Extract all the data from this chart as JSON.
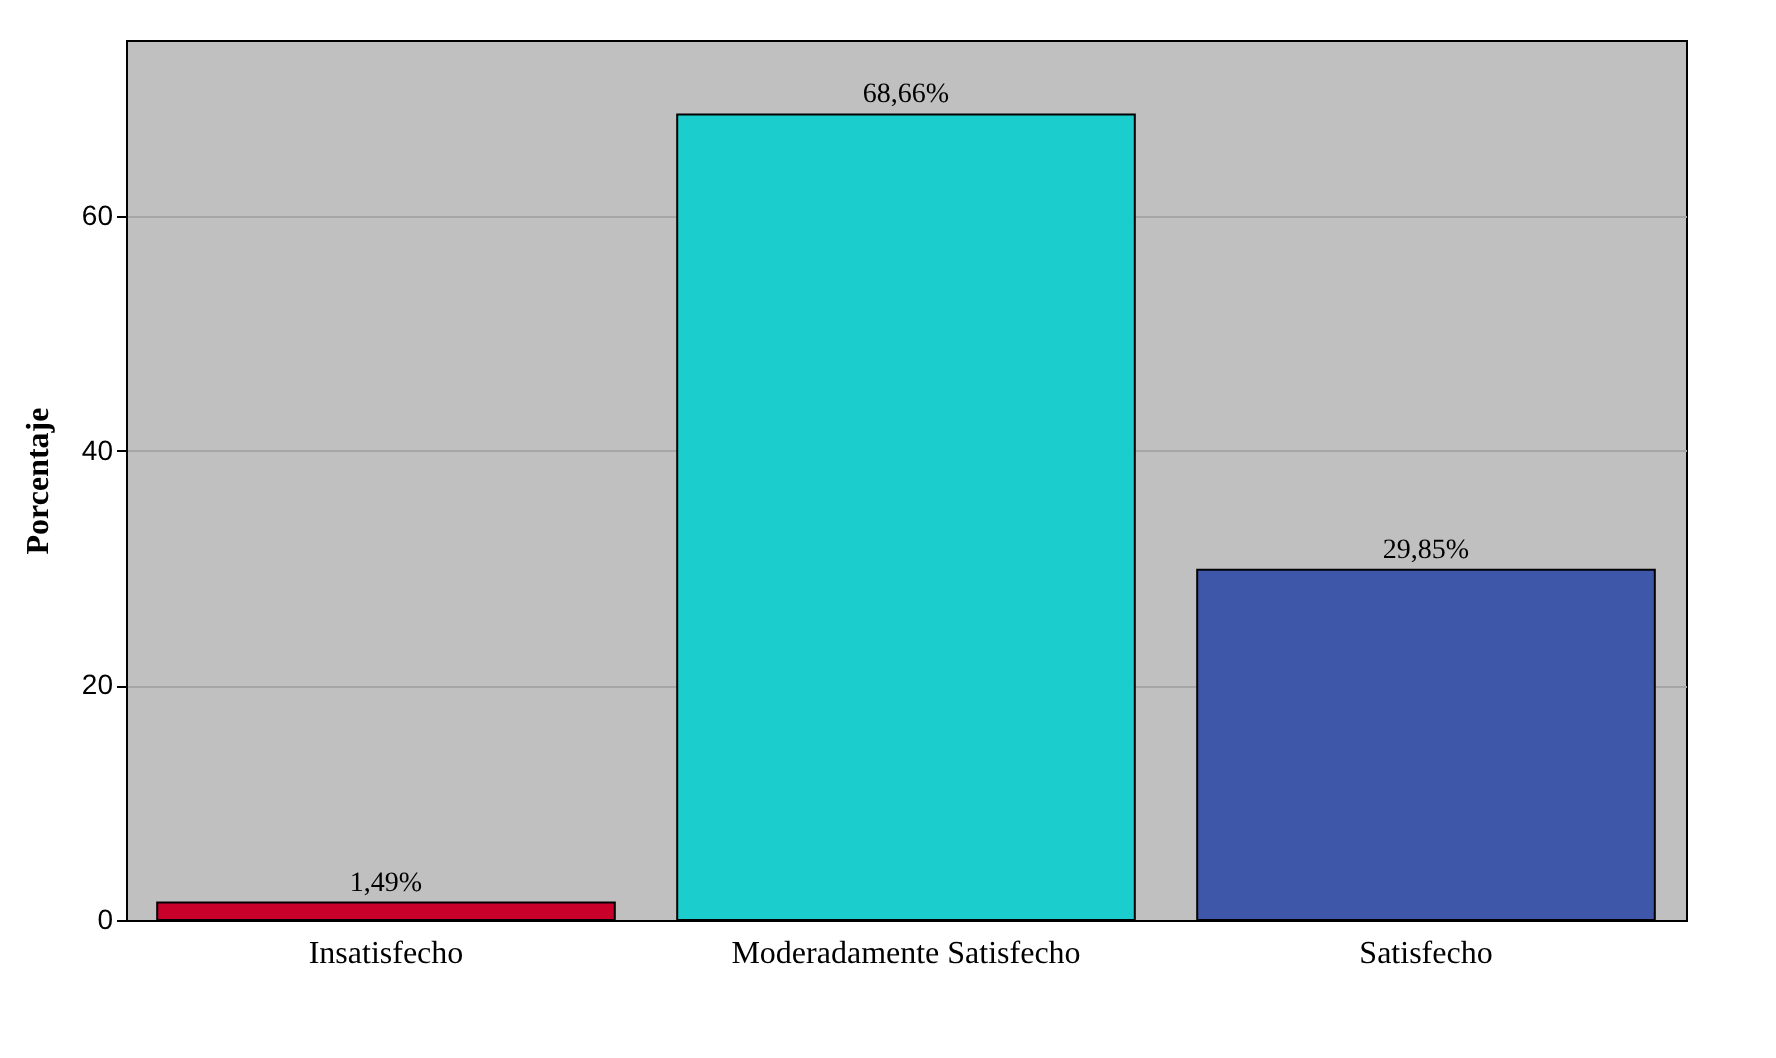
{
  "chart_data": {
    "type": "bar",
    "ylabel": "Porcentaje",
    "categories": [
      "Insatisfecho",
      "Moderadamente Satisfecho",
      "Satisfecho"
    ],
    "values": [
      1.49,
      68.66,
      29.85
    ],
    "colors": [
      "#c8002a",
      "#1ccdcd",
      "#3f57a8"
    ],
    "value_labels": [
      "1,49%",
      "68,66%",
      "29,85%"
    ],
    "ylim": [
      0,
      75
    ],
    "yticks": [
      0,
      20,
      40,
      60
    ],
    "grid": "y"
  }
}
